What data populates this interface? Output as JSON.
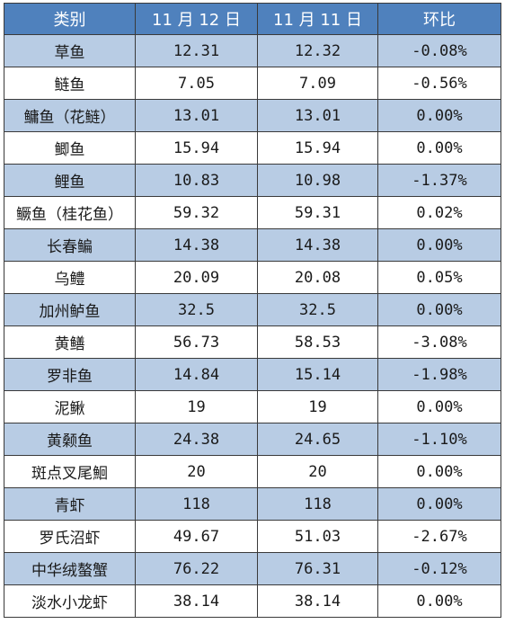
{
  "table": {
    "headers": [
      "类别",
      "11 月 12 日",
      "11 月 11 日",
      "环比"
    ],
    "rows": [
      {
        "category": "草鱼",
        "nov12": "12.31",
        "nov11": "12.32",
        "change": "-0.08%"
      },
      {
        "category": "鲢鱼",
        "nov12": "7.05",
        "nov11": "7.09",
        "change": "-0.56%"
      },
      {
        "category": "鳙鱼（花鲢）",
        "nov12": "13.01",
        "nov11": "13.01",
        "change": "0.00%"
      },
      {
        "category": "鲫鱼",
        "nov12": "15.94",
        "nov11": "15.94",
        "change": "0.00%"
      },
      {
        "category": "鲤鱼",
        "nov12": "10.83",
        "nov11": "10.98",
        "change": "-1.37%"
      },
      {
        "category": "鳜鱼（桂花鱼）",
        "nov12": "59.32",
        "nov11": "59.31",
        "change": "0.02%"
      },
      {
        "category": "长春鳊",
        "nov12": "14.38",
        "nov11": "14.38",
        "change": "0.00%"
      },
      {
        "category": "乌鳢",
        "nov12": "20.09",
        "nov11": "20.08",
        "change": "0.05%"
      },
      {
        "category": "加州鲈鱼",
        "nov12": "32.5",
        "nov11": "32.5",
        "change": "0.00%"
      },
      {
        "category": "黄鳝",
        "nov12": "56.73",
        "nov11": "58.53",
        "change": "-3.08%"
      },
      {
        "category": "罗非鱼",
        "nov12": "14.84",
        "nov11": "15.14",
        "change": "-1.98%"
      },
      {
        "category": "泥鳅",
        "nov12": "19",
        "nov11": "19",
        "change": "0.00%"
      },
      {
        "category": "黄颡鱼",
        "nov12": "24.38",
        "nov11": "24.65",
        "change": "-1.10%"
      },
      {
        "category": "斑点叉尾鮰",
        "nov12": "20",
        "nov11": "20",
        "change": "0.00%"
      },
      {
        "category": "青虾",
        "nov12": "118",
        "nov11": "118",
        "change": "0.00%"
      },
      {
        "category": "罗氏沼虾",
        "nov12": "49.67",
        "nov11": "51.03",
        "change": "-2.67%"
      },
      {
        "category": "中华绒螯蟹",
        "nov12": "76.22",
        "nov11": "76.31",
        "change": "-0.12%"
      },
      {
        "category": "淡水小龙虾",
        "nov12": "38.14",
        "nov11": "38.14",
        "change": "0.00%"
      }
    ]
  },
  "colors": {
    "header_bg": "#4f81bd",
    "header_text": "#ffffff",
    "stripe_bg": "#b8cce4",
    "plain_bg": "#ffffff",
    "border": "#3a3a3a"
  }
}
